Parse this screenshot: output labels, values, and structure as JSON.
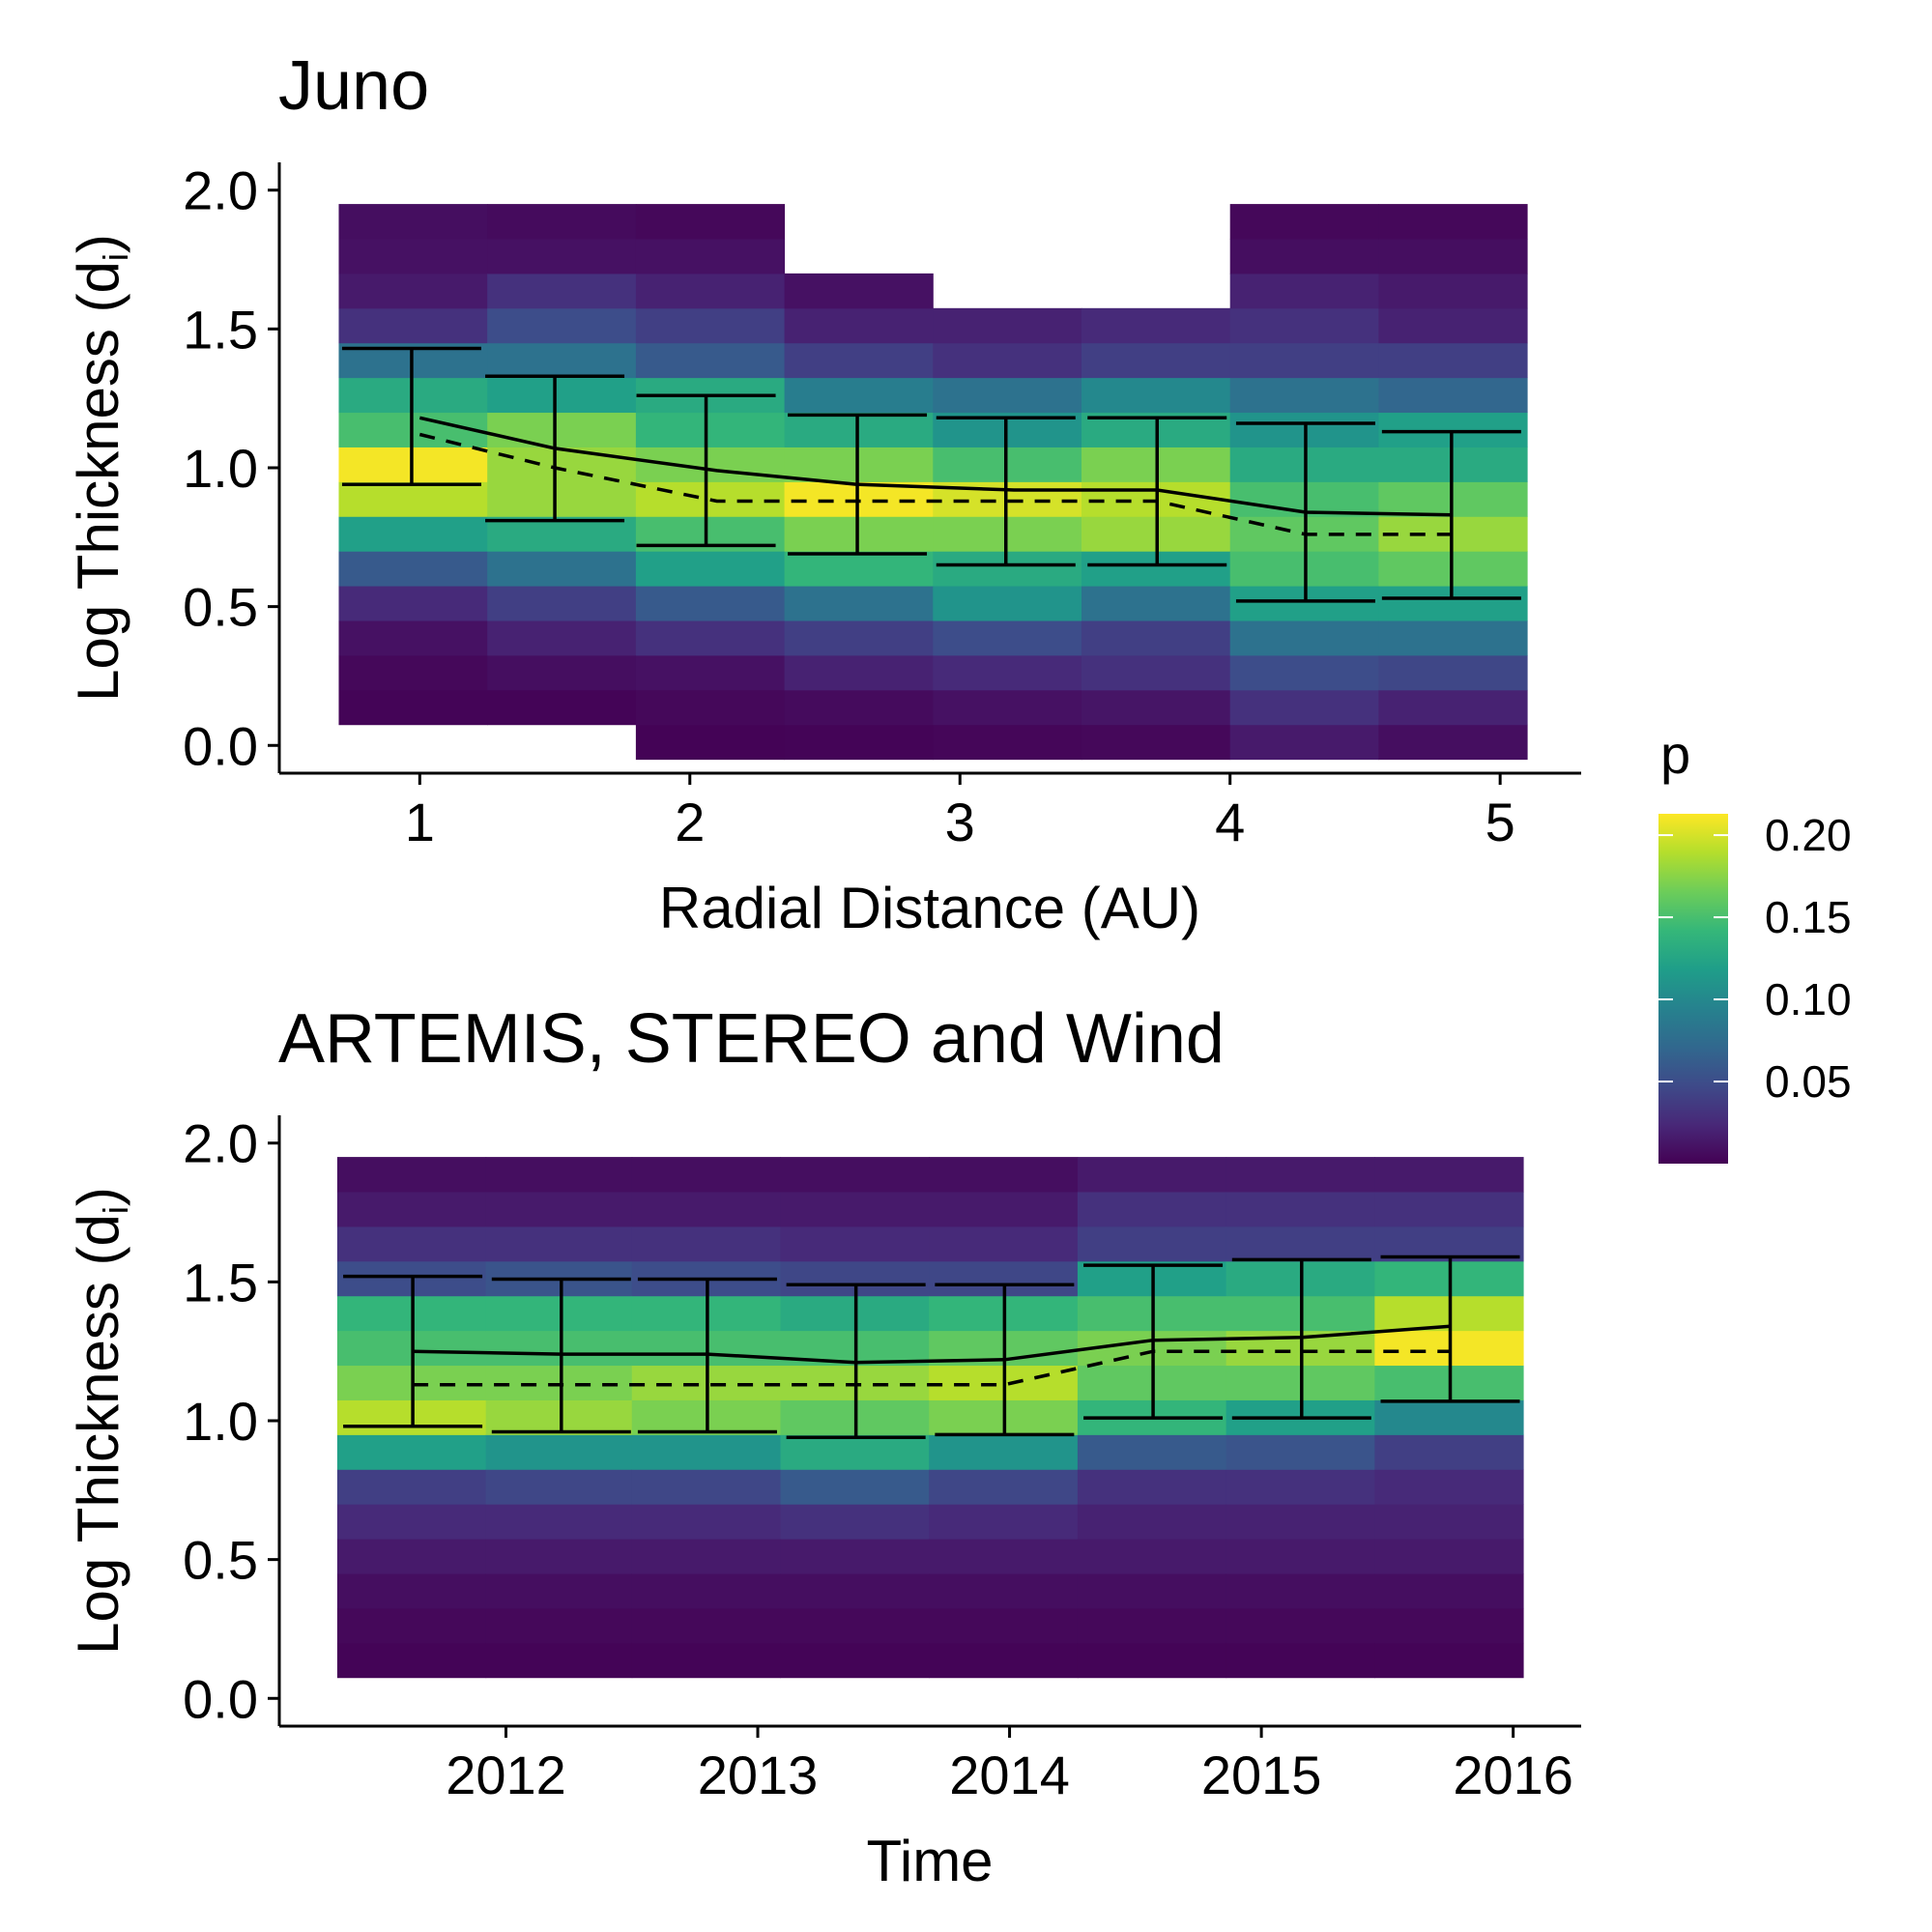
{
  "chart_data": [
    {
      "type": "heatmap",
      "title": "Juno",
      "xlabel": "Radial Distance (AU)",
      "ylabel": "Log Thickness (d",
      "ylabel_sub": "i",
      "ylabel_close": ")",
      "x_ticks": [
        "1",
        "2",
        "3",
        "4",
        "5"
      ],
      "x_tick_values": [
        1,
        2,
        3,
        4,
        5
      ],
      "xlim": [
        0.48,
        5.3
      ],
      "y_ticks": [
        "0.0",
        "0.5",
        "1.0",
        "1.5",
        "2.0"
      ],
      "y_tick_values": [
        0,
        0.5,
        1.0,
        1.5,
        2.0
      ],
      "ylim": [
        -0.1,
        2.1
      ],
      "x_bins": [
        0.7,
        1.25,
        1.8,
        2.35,
        2.9,
        3.45,
        4.0,
        4.55,
        5.1
      ],
      "y_bins": [
        -0.05,
        0.075,
        0.2,
        0.325,
        0.45,
        0.575,
        0.7,
        0.825,
        0.95,
        1.075,
        1.2,
        1.325,
        1.45,
        1.575,
        1.7,
        1.825,
        1.95
      ],
      "p_matrix": [
        [
          0.0,
          0.002,
          0.004,
          0.01,
          0.025,
          0.06,
          0.12,
          0.19,
          0.21,
          0.15,
          0.13,
          0.08,
          0.03,
          0.015,
          0.01,
          0.008
        ],
        [
          0.0,
          0.002,
          0.008,
          0.02,
          0.04,
          0.08,
          0.13,
          0.18,
          0.18,
          0.17,
          0.12,
          0.08,
          0.05,
          0.03,
          0.01,
          0.006
        ],
        [
          0.001,
          0.004,
          0.01,
          0.03,
          0.06,
          0.12,
          0.15,
          0.19,
          0.17,
          0.14,
          0.13,
          0.06,
          0.04,
          0.02,
          0.01,
          0.004
        ],
        [
          0.002,
          0.006,
          0.02,
          0.04,
          0.08,
          0.14,
          0.17,
          0.21,
          0.17,
          0.13,
          0.09,
          0.04,
          0.02,
          0.01,
          0.0,
          0.0
        ],
        [
          0.003,
          0.01,
          0.025,
          0.05,
          0.11,
          0.13,
          0.17,
          0.2,
          0.15,
          0.11,
          0.08,
          0.03,
          0.02,
          0.0,
          0.0,
          0.0
        ],
        [
          0.004,
          0.012,
          0.03,
          0.04,
          0.08,
          0.12,
          0.18,
          0.19,
          0.17,
          0.13,
          0.1,
          0.04,
          0.025,
          0.0,
          0.0,
          0.0
        ],
        [
          0.015,
          0.03,
          0.05,
          0.08,
          0.12,
          0.15,
          0.16,
          0.15,
          0.13,
          0.11,
          0.08,
          0.04,
          0.03,
          0.02,
          0.008,
          0.004
        ],
        [
          0.008,
          0.02,
          0.045,
          0.08,
          0.12,
          0.16,
          0.18,
          0.16,
          0.13,
          0.12,
          0.07,
          0.04,
          0.02,
          0.015,
          0.008,
          0.004
        ]
      ],
      "mean_line": {
        "x": [
          1.0,
          1.5,
          2.1,
          2.62,
          3.2,
          3.73,
          4.28,
          4.82
        ],
        "y": [
          1.18,
          1.07,
          0.99,
          0.94,
          0.92,
          0.92,
          0.84,
          0.83
        ]
      },
      "median_line": {
        "x": [
          1.0,
          1.5,
          2.1,
          2.62,
          3.2,
          3.73,
          4.28,
          4.82
        ],
        "y": [
          1.12,
          1.0,
          0.88,
          0.88,
          0.88,
          0.88,
          0.76,
          0.76
        ]
      },
      "error_bars": {
        "x": [
          0.97,
          1.5,
          2.06,
          2.62,
          3.17,
          3.73,
          4.28,
          4.82
        ],
        "low": [
          0.94,
          0.81,
          0.72,
          0.69,
          0.65,
          0.65,
          0.52,
          0.53
        ],
        "high": [
          1.43,
          1.33,
          1.26,
          1.19,
          1.18,
          1.18,
          1.16,
          1.13
        ]
      }
    },
    {
      "type": "heatmap",
      "title": "ARTEMIS, STEREO and Wind",
      "xlabel": "Time",
      "ylabel": "Log Thickness (d",
      "ylabel_sub": "i",
      "ylabel_close": ")",
      "x_ticks": [
        "2012",
        "2013",
        "2014",
        "2015",
        "2016"
      ],
      "x_tick_values": [
        2012,
        2013,
        2014,
        2015,
        2016
      ],
      "xlim": [
        2011.1,
        2016.27
      ],
      "y_ticks": [
        "0.0",
        "0.5",
        "1.0",
        "1.5",
        "2.0"
      ],
      "y_tick_values": [
        0,
        0.5,
        1.0,
        1.5,
        2.0
      ],
      "ylim": [
        -0.1,
        2.1
      ],
      "x_bins": [
        2011.33,
        2011.92,
        2012.5,
        2013.09,
        2013.68,
        2014.27,
        2014.86,
        2015.45,
        2016.04
      ],
      "y_bins": [
        -0.05,
        0.075,
        0.2,
        0.325,
        0.45,
        0.575,
        0.7,
        0.825,
        0.95,
        1.075,
        1.2,
        1.325,
        1.45,
        1.575,
        1.7,
        1.825,
        1.95
      ],
      "p_matrix": [
        [
          0.0,
          0.002,
          0.004,
          0.008,
          0.015,
          0.025,
          0.04,
          0.12,
          0.19,
          0.17,
          0.15,
          0.14,
          0.05,
          0.03,
          0.015,
          0.008
        ],
        [
          0.0,
          0.002,
          0.004,
          0.008,
          0.015,
          0.025,
          0.045,
          0.11,
          0.18,
          0.17,
          0.15,
          0.14,
          0.055,
          0.03,
          0.015,
          0.008
        ],
        [
          0.0,
          0.002,
          0.004,
          0.008,
          0.015,
          0.025,
          0.045,
          0.11,
          0.17,
          0.18,
          0.15,
          0.14,
          0.05,
          0.03,
          0.015,
          0.008
        ],
        [
          0.0,
          0.002,
          0.004,
          0.008,
          0.015,
          0.03,
          0.06,
          0.13,
          0.16,
          0.18,
          0.15,
          0.13,
          0.045,
          0.025,
          0.015,
          0.008
        ],
        [
          0.0,
          0.002,
          0.004,
          0.008,
          0.015,
          0.025,
          0.045,
          0.11,
          0.17,
          0.19,
          0.16,
          0.14,
          0.045,
          0.025,
          0.015,
          0.008
        ],
        [
          0.0,
          0.002,
          0.004,
          0.008,
          0.015,
          0.02,
          0.03,
          0.06,
          0.14,
          0.16,
          0.17,
          0.15,
          0.12,
          0.04,
          0.03,
          0.015
        ],
        [
          0.0,
          0.002,
          0.004,
          0.008,
          0.015,
          0.02,
          0.03,
          0.055,
          0.12,
          0.16,
          0.18,
          0.15,
          0.13,
          0.04,
          0.03,
          0.015
        ],
        [
          0.0,
          0.002,
          0.004,
          0.008,
          0.015,
          0.02,
          0.025,
          0.04,
          0.1,
          0.15,
          0.21,
          0.19,
          0.14,
          0.04,
          0.03,
          0.015
        ]
      ],
      "mean_line": {
        "x": [
          2011.63,
          2012.22,
          2012.8,
          2013.39,
          2013.98,
          2014.57,
          2015.16,
          2015.75
        ],
        "y": [
          1.25,
          1.24,
          1.24,
          1.21,
          1.22,
          1.29,
          1.3,
          1.34
        ]
      },
      "median_line": {
        "x": [
          2011.63,
          2012.22,
          2012.8,
          2013.39,
          2013.98,
          2014.57,
          2015.16,
          2015.75
        ],
        "y": [
          1.13,
          1.13,
          1.13,
          1.13,
          1.13,
          1.25,
          1.25,
          1.25
        ]
      },
      "error_bars": {
        "x": [
          2011.63,
          2012.22,
          2012.8,
          2013.39,
          2013.98,
          2014.57,
          2015.16,
          2015.75
        ],
        "low": [
          0.98,
          0.96,
          0.96,
          0.94,
          0.95,
          1.01,
          1.01,
          1.07
        ],
        "high": [
          1.52,
          1.51,
          1.51,
          1.49,
          1.49,
          1.56,
          1.58,
          1.59
        ]
      }
    }
  ],
  "legend": {
    "title": "p",
    "ticks": [
      "0.05",
      "0.10",
      "0.15",
      "0.20"
    ],
    "tick_values": [
      0.05,
      0.1,
      0.15,
      0.2
    ],
    "range": [
      0.0,
      0.213
    ],
    "colormap": "viridis",
    "colors": [
      "#440154",
      "#482878",
      "#3E4A89",
      "#31688E",
      "#26828E",
      "#1F9E89",
      "#35B779",
      "#6DCD59",
      "#B4DE2C",
      "#FDE725"
    ]
  }
}
